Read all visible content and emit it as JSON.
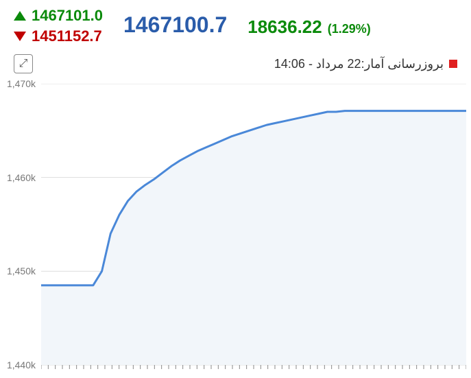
{
  "header": {
    "high_value": "1467101.0",
    "low_value": "1451152.7",
    "main_value": "1467100.7",
    "change_value": "18636.22",
    "change_percent": "(1.29%)",
    "high_color": "#0b8a0b",
    "low_color": "#c00000",
    "main_color": "#2a5caa",
    "change_color": "#0b8a0b"
  },
  "update": {
    "text": "بروزرسانی آمار:22 مرداد - 14:06",
    "indicator_color": "#e02020"
  },
  "chart": {
    "type": "area",
    "ylim": [
      1440,
      1470
    ],
    "ytick_step": 10,
    "ytick_labels": [
      "1,440k",
      "1,450k",
      "1,460k",
      "1,470k"
    ],
    "x_count": 50,
    "values": [
      1448.5,
      1448.5,
      1448.5,
      1448.5,
      1448.5,
      1448.5,
      1448.5,
      1450,
      1454,
      1456,
      1457.5,
      1458.5,
      1459.2,
      1459.8,
      1460.5,
      1461.2,
      1461.8,
      1462.3,
      1462.8,
      1463.2,
      1463.6,
      1464.0,
      1464.4,
      1464.7,
      1465.0,
      1465.3,
      1465.6,
      1465.8,
      1466.0,
      1466.2,
      1466.4,
      1466.6,
      1466.8,
      1467.0,
      1467.0,
      1467.1,
      1467.1,
      1467.1,
      1467.1,
      1467.1,
      1467.1,
      1467.1,
      1467.1,
      1467.1,
      1467.1,
      1467.1,
      1467.1,
      1467.1,
      1467.1,
      1467.1
    ],
    "line_color": "#4a88d8",
    "line_width": 3,
    "area_color": "#f2f6fa",
    "grid_color": "#dddddd",
    "tick_color": "#888888",
    "label_color": "#777777",
    "label_fontsize": 14,
    "background_color": "#ffffff",
    "watermark_color": "#8a7a5a",
    "minor_tick_count": 60
  },
  "icons": {
    "expand": "⤢"
  }
}
